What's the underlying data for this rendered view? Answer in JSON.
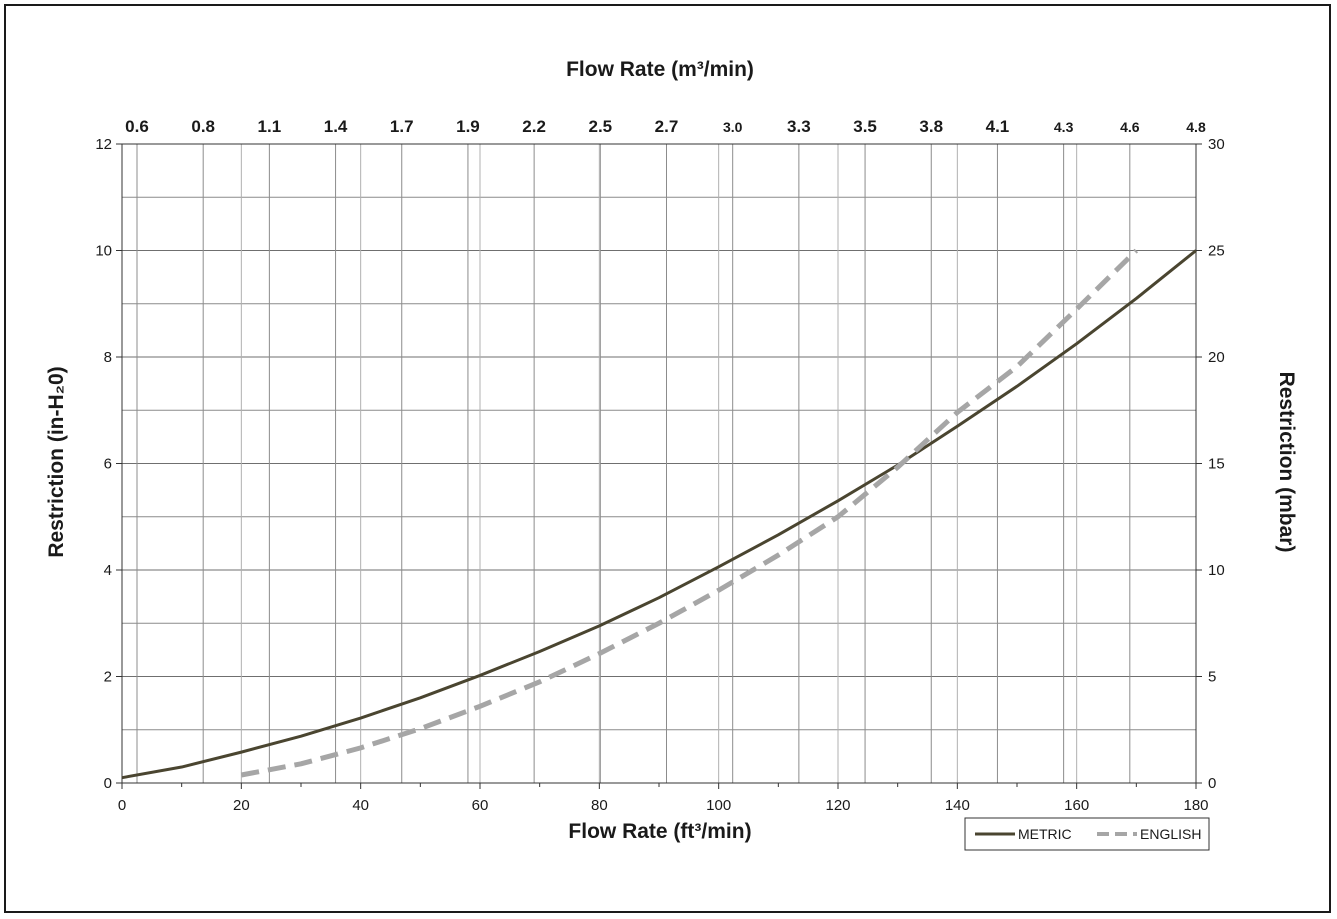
{
  "chart_data": {
    "type": "line",
    "title": "",
    "xlabel": "Flow Rate (ft³/min)",
    "x2label": "Flow Rate (m³/min)",
    "ylabel": "Restriction (in-H₂0)",
    "y2label": "Restriction (mbar)",
    "xlim": [
      0,
      180
    ],
    "ylim": [
      0,
      12
    ],
    "y2lim": [
      0,
      30
    ],
    "x_ticks": [
      "0",
      "20",
      "40",
      "60",
      "80",
      "100",
      "120",
      "140",
      "160",
      "180"
    ],
    "y_ticks": [
      "0",
      "2",
      "4",
      "6",
      "8",
      "10",
      "12"
    ],
    "y2_ticks": [
      "0",
      "5",
      "10",
      "15",
      "20",
      "25",
      "30"
    ],
    "top_ticks": [
      "0.6",
      "0.8",
      "1.1",
      "1.4",
      "1.7",
      "1.9",
      "2.2",
      "2.5",
      "2.7",
      "3.0",
      "3.3",
      "3.5",
      "3.8",
      "4.1",
      "4.3",
      "4.6",
      "4.8"
    ],
    "grid": true,
    "legend_position": "bottom-right",
    "series": [
      {
        "name": "METRIC",
        "style": "solid",
        "color": "#4a4530",
        "x": [
          0,
          10,
          20,
          30,
          40,
          50,
          60,
          70,
          80,
          90,
          100,
          110,
          120,
          130,
          140,
          150,
          160,
          170,
          180
        ],
        "y": [
          0.1,
          0.3,
          0.58,
          0.88,
          1.22,
          1.6,
          2.02,
          2.47,
          2.95,
          3.48,
          4.06,
          4.66,
          5.3,
          5.97,
          6.7,
          7.45,
          8.25,
          9.1,
          10.0
        ]
      },
      {
        "name": "ENGLISH",
        "style": "dashed",
        "color": "#a6a6a6",
        "x": [
          20,
          30,
          40,
          50,
          60,
          70,
          80,
          90,
          100,
          110,
          120,
          130,
          140,
          150,
          160,
          170
        ],
        "y": [
          0.15,
          0.36,
          0.66,
          1.02,
          1.44,
          1.9,
          2.43,
          3.0,
          3.62,
          4.28,
          5.0,
          5.93,
          6.96,
          7.82,
          8.9,
          10.0
        ]
      }
    ]
  }
}
